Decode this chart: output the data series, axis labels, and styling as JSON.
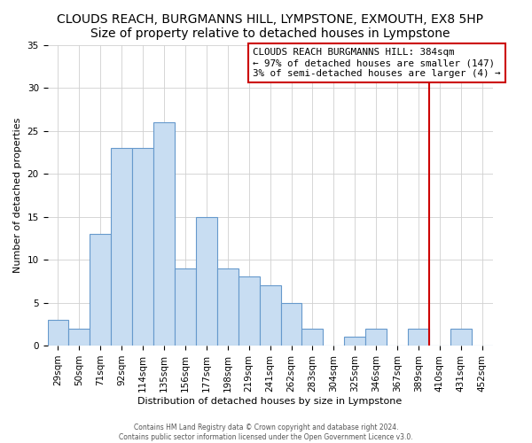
{
  "title": "CLOUDS REACH, BURGMANNS HILL, LYMPSTONE, EXMOUTH, EX8 5HP",
  "subtitle": "Size of property relative to detached houses in Lympstone",
  "xlabel": "Distribution of detached houses by size in Lympstone",
  "ylabel": "Number of detached properties",
  "bar_labels": [
    "29sqm",
    "50sqm",
    "71sqm",
    "92sqm",
    "114sqm",
    "135sqm",
    "156sqm",
    "177sqm",
    "198sqm",
    "219sqm",
    "241sqm",
    "262sqm",
    "283sqm",
    "304sqm",
    "325sqm",
    "346sqm",
    "367sqm",
    "389sqm",
    "410sqm",
    "431sqm",
    "452sqm"
  ],
  "bar_values": [
    3,
    2,
    13,
    23,
    23,
    26,
    9,
    15,
    9,
    8,
    7,
    5,
    2,
    0,
    1,
    2,
    0,
    2,
    0,
    2,
    0
  ],
  "bar_color": "#c8ddf2",
  "bar_edge_color": "#6699cc",
  "vline_x": 17.5,
  "vline_color": "#cc0000",
  "ylim": [
    0,
    35
  ],
  "yticks": [
    0,
    5,
    10,
    15,
    20,
    25,
    30,
    35
  ],
  "annotation_line1": "CLOUDS REACH BURGMANNS HILL: 384sqm",
  "annotation_line2": "← 97% of detached houses are smaller (147)",
  "annotation_line3": "3% of semi-detached houses are larger (4) →",
  "footer1": "Contains HM Land Registry data © Crown copyright and database right 2024.",
  "footer2": "Contains public sector information licensed under the Open Government Licence v3.0.",
  "title_fontsize": 10,
  "subtitle_fontsize": 9,
  "axis_label_fontsize": 8,
  "tick_fontsize": 7.5
}
